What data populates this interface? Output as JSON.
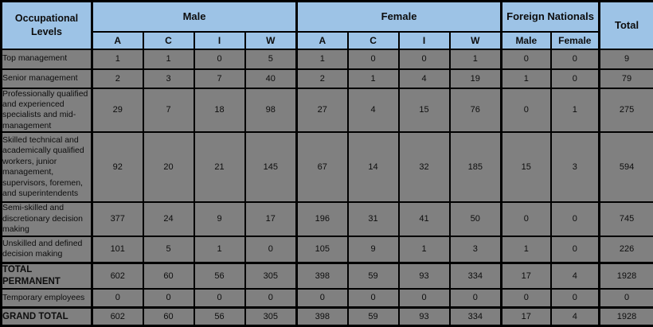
{
  "table": {
    "corner_label": "Occupational Levels",
    "groups": [
      {
        "label": "Male",
        "sub": [
          "A",
          "C",
          "I",
          "W"
        ]
      },
      {
        "label": "Female",
        "sub": [
          "A",
          "C",
          "I",
          "W"
        ]
      },
      {
        "label": "Foreign Nationals",
        "sub": [
          "Male",
          "Female"
        ]
      },
      {
        "label": "Total",
        "sub": []
      }
    ],
    "rows": [
      {
        "label": "Top management",
        "bold": false,
        "values": [
          1,
          1,
          0,
          5,
          1,
          0,
          0,
          1,
          0,
          0,
          9
        ]
      },
      {
        "label": "Senior management",
        "bold": false,
        "values": [
          2,
          3,
          7,
          40,
          2,
          1,
          4,
          19,
          1,
          0,
          79
        ]
      },
      {
        "label": "Professionally qualified and experienced specialists and mid-management",
        "bold": false,
        "values": [
          29,
          7,
          18,
          98,
          27,
          4,
          15,
          76,
          0,
          1,
          275
        ]
      },
      {
        "label": "Skilled technical and academically qualified workers, junior management, supervisors, foremen, and superintendents",
        "bold": false,
        "values": [
          92,
          20,
          21,
          145,
          67,
          14,
          32,
          185,
          15,
          3,
          594
        ]
      },
      {
        "label": "Semi-skilled and discretionary decision making",
        "bold": false,
        "values": [
          377,
          24,
          9,
          17,
          196,
          31,
          41,
          50,
          0,
          0,
          745
        ]
      },
      {
        "label": "Unskilled and defined decision making",
        "bold": false,
        "values": [
          101,
          5,
          1,
          0,
          105,
          9,
          1,
          3,
          1,
          0,
          226
        ]
      },
      {
        "label": "TOTAL PERMANENT",
        "bold": true,
        "values": [
          602,
          60,
          56,
          305,
          398,
          59,
          93,
          334,
          17,
          4,
          1928
        ]
      },
      {
        "label": "Temporary employees",
        "bold": false,
        "values": [
          0,
          0,
          0,
          0,
          0,
          0,
          0,
          0,
          0,
          0,
          0
        ]
      },
      {
        "label": "GRAND TOTAL",
        "bold": true,
        "values": [
          602,
          60,
          56,
          305,
          398,
          59,
          93,
          334,
          17,
          4,
          1928
        ]
      }
    ]
  },
  "colors": {
    "header_bg": "#9DC3E6",
    "cell_bg": "#808080",
    "border": "#000000",
    "text": "#0d0d0d"
  }
}
